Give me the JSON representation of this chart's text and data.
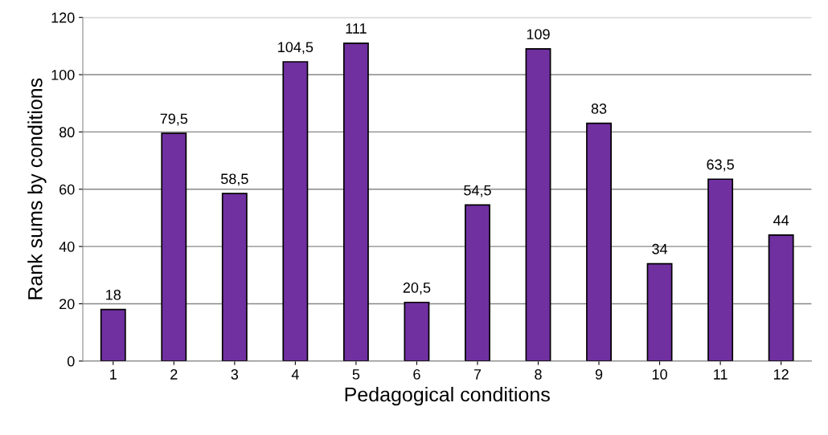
{
  "chart_data": {
    "type": "bar",
    "xlabel": "Pedagogical conditions",
    "ylabel": "Rank sums by conditions",
    "categories": [
      "1",
      "2",
      "3",
      "4",
      "5",
      "6",
      "7",
      "8",
      "9",
      "10",
      "11",
      "12"
    ],
    "values": [
      18,
      79.5,
      58.5,
      104.5,
      111,
      20.5,
      54.5,
      109,
      83,
      34,
      63.5,
      44
    ],
    "value_labels": [
      "18",
      "79,5",
      "58,5",
      "104,5",
      "111",
      "20,5",
      "54,5",
      "109",
      "83",
      "34",
      "63,5",
      "44"
    ],
    "color": "#7030a0",
    "ylim": [
      0,
      120
    ],
    "yticks": [
      0,
      20,
      40,
      60,
      80,
      100,
      120
    ],
    "grid": "y"
  }
}
